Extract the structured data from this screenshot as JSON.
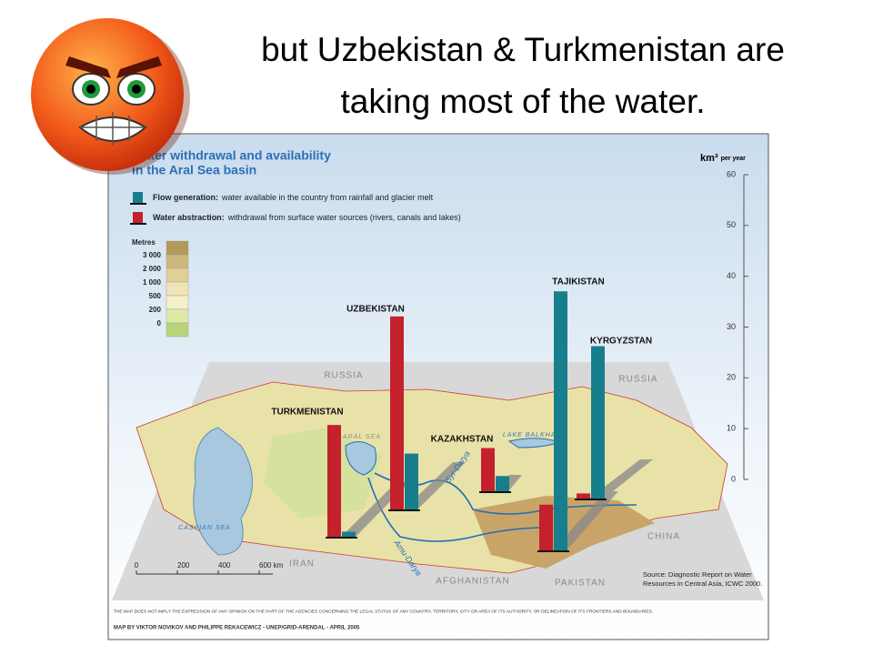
{
  "slide": {
    "title_lines": [
      "but Uzbekistan & Turkmenistan are",
      "taking most of the water."
    ]
  },
  "chart_data": {
    "type": "bar",
    "title": [
      "Water withdrawal and availability",
      "in the Aral Sea basin"
    ],
    "y_label": "km³",
    "y_label_unit": "per year",
    "categories": [
      "TURKMENISTAN",
      "UZBEKISTAN",
      "KAZAKHSTAN",
      "TAJIKISTAN",
      "KYRGYZSTAN"
    ],
    "series": [
      {
        "name": "Flow generation:",
        "description": "water available in the country from rainfall and glacier melt",
        "color": "#177f8c",
        "values": [
          1,
          11,
          3,
          51,
          30
        ]
      },
      {
        "name": "Water abstraction:",
        "description": "withdrawal from surface water sources (rivers, canals and lakes)",
        "color": "#c4212d",
        "values": [
          22,
          38,
          8.5,
          9,
          1
        ]
      }
    ],
    "ylim": [
      0,
      60
    ],
    "yticks": [
      0,
      10,
      20,
      30,
      40,
      50,
      60
    ],
    "elevation_legend": {
      "title": "Metres",
      "labels": [
        "3 000",
        "2 000",
        "1 000",
        "500",
        "200",
        "0"
      ],
      "colors": [
        "#b39a5a",
        "#cdb77a",
        "#e1cf98",
        "#efe4b6",
        "#f4f0c8",
        "#dfe9a6",
        "#b9d57a"
      ]
    },
    "scale_bar": [
      "0",
      "200",
      "400",
      "600 km"
    ],
    "map_labels": [
      "RUSSIA",
      "RUSSIA",
      "ARAL SEA",
      "LAKE BALKHASH",
      "CASPIAN SEA",
      "IRAN",
      "AFGHANISTAN",
      "PAKISTAN",
      "CHINA",
      "Syr-Darya",
      "Amu-Darya"
    ],
    "source": [
      "Source: Diagnostic Report on Water",
      "Resources in Central Asia, ICWC 2000."
    ],
    "disclaimer": "THE MAP DOES NOT IMPLY THE EXPRESSION OF ANY OPINION ON THE PART OF THE AGENCIES CONCERNING THE LEGAL STATUS OF ANY COUNTRY, TERRITORY, CITY OR AREA OF ITS AUTHORITY, OR DELINEATION OF ITS FRONTIERS AND BOUNDARIES.",
    "credit": "MAP BY VIKTOR NOVIKOV AND PHILIPPE REKACEWICZ - UNEP/GRID-ARENDAL - APRIL 2005"
  }
}
